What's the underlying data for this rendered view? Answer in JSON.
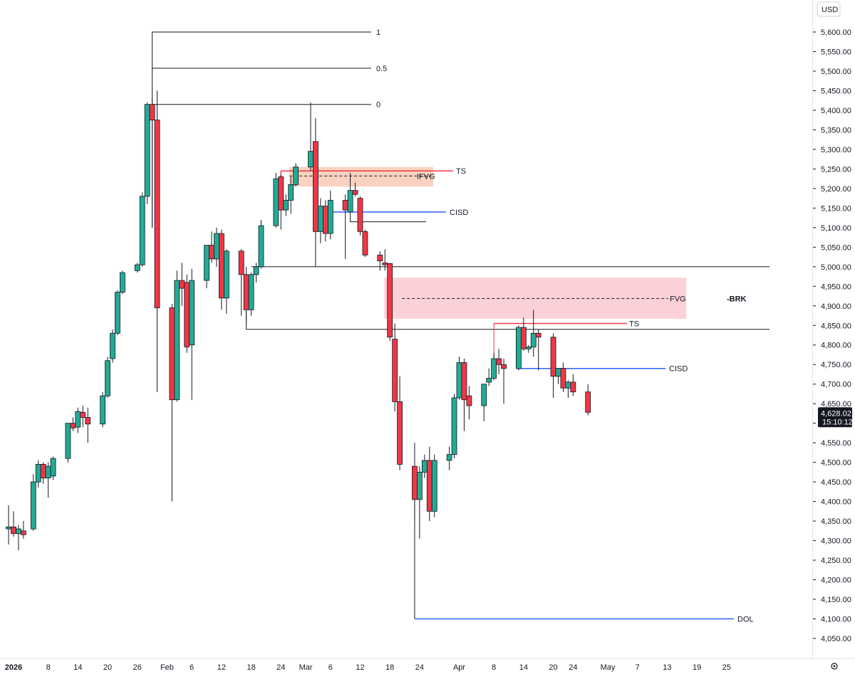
{
  "chart_data": {
    "type": "candlestick",
    "currency_button": "USD",
    "current_price_label": "4,628.02",
    "countdown_label": "15:10:12",
    "y_axis": {
      "range": [
        4020,
        5640
      ],
      "ticks": [
        "4,050.00",
        "4,100.00",
        "4,150.00",
        "4,200.00",
        "4,250.00",
        "4,300.00",
        "4,350.00",
        "4,400.00",
        "4,450.00",
        "4,500.00",
        "4,550.00",
        "4,600.00",
        "4,650.00",
        "4,700.00",
        "4,750.00",
        "4,800.00",
        "4,850.00",
        "4,900.00",
        "4,950.00",
        "5,000.00",
        "5,050.00",
        "5,100.00",
        "5,150.00",
        "5,200.00",
        "5,250.00",
        "5,300.00",
        "5,350.00",
        "5,400.00",
        "5,450.00",
        "5,500.00",
        "5,550.00",
        "5,600.00"
      ]
    },
    "x_axis": {
      "range": [
        "2025-12-31",
        "2026-05-28"
      ],
      "ticks": [
        {
          "date": "2026-01-01",
          "label": "2026",
          "bold": true
        },
        {
          "date": "2026-01-08",
          "label": "8"
        },
        {
          "date": "2026-01-14",
          "label": "14"
        },
        {
          "date": "2026-01-20",
          "label": "20"
        },
        {
          "date": "2026-01-26",
          "label": "26"
        },
        {
          "date": "2026-02-01",
          "label": "Feb"
        },
        {
          "date": "2026-02-06",
          "label": "6"
        },
        {
          "date": "2026-02-12",
          "label": "12"
        },
        {
          "date": "2026-02-18",
          "label": "18"
        },
        {
          "date": "2026-02-24",
          "label": "24"
        },
        {
          "date": "2026-03-01",
          "label": "Mar"
        },
        {
          "date": "2026-03-06",
          "label": "6"
        },
        {
          "date": "2026-03-12",
          "label": "12"
        },
        {
          "date": "2026-03-18",
          "label": "18"
        },
        {
          "date": "2026-03-24",
          "label": "24"
        },
        {
          "date": "2026-04-01",
          "label": "Apr"
        },
        {
          "date": "2026-04-08",
          "label": "8"
        },
        {
          "date": "2026-04-14",
          "label": "14"
        },
        {
          "date": "2026-04-20",
          "label": "20"
        },
        {
          "date": "2026-04-24",
          "label": "24"
        },
        {
          "date": "2026-05-01",
          "label": "May"
        },
        {
          "date": "2026-05-07",
          "label": "7"
        },
        {
          "date": "2026-05-13",
          "label": "13"
        },
        {
          "date": "2026-05-19",
          "label": "19"
        },
        {
          "date": "2026-05-25",
          "label": "25"
        }
      ]
    },
    "candles": [
      {
        "date": "2025-12-31",
        "o": 4330,
        "h": 4390,
        "l": 4290,
        "c": 4335
      },
      {
        "date": "2026-01-01",
        "o": 4335,
        "h": 4375,
        "l": 4310,
        "c": 4318
      },
      {
        "date": "2026-01-02",
        "o": 4318,
        "h": 4340,
        "l": 4275,
        "c": 4330
      },
      {
        "date": "2026-01-03",
        "o": 4325,
        "h": 4350,
        "l": 4305,
        "c": 4315
      },
      {
        "date": "2026-01-05",
        "o": 4330,
        "h": 4470,
        "l": 4325,
        "c": 4450
      },
      {
        "date": "2026-01-06",
        "o": 4450,
        "h": 4505,
        "l": 4435,
        "c": 4495
      },
      {
        "date": "2026-01-07",
        "o": 4495,
        "h": 4500,
        "l": 4445,
        "c": 4460
      },
      {
        "date": "2026-01-08",
        "o": 4460,
        "h": 4500,
        "l": 4410,
        "c": 4490
      },
      {
        "date": "2026-01-09",
        "o": 4465,
        "h": 4515,
        "l": 4455,
        "c": 4510
      },
      {
        "date": "2026-01-12",
        "o": 4510,
        "h": 4600,
        "l": 4500,
        "c": 4600
      },
      {
        "date": "2026-01-13",
        "o": 4600,
        "h": 4615,
        "l": 4580,
        "c": 4588
      },
      {
        "date": "2026-01-14",
        "o": 4590,
        "h": 4640,
        "l": 4575,
        "c": 4630
      },
      {
        "date": "2026-01-15",
        "o": 4628,
        "h": 4645,
        "l": 4590,
        "c": 4615
      },
      {
        "date": "2026-01-16",
        "o": 4615,
        "h": 4640,
        "l": 4550,
        "c": 4598
      },
      {
        "date": "2026-01-19",
        "o": 4598,
        "h": 4680,
        "l": 4590,
        "c": 4670
      },
      {
        "date": "2026-01-20",
        "o": 4670,
        "h": 4770,
        "l": 4665,
        "c": 4760
      },
      {
        "date": "2026-01-21",
        "o": 4765,
        "h": 4840,
        "l": 4755,
        "c": 4830
      },
      {
        "date": "2026-01-22",
        "o": 4830,
        "h": 4940,
        "l": 4825,
        "c": 4935
      },
      {
        "date": "2026-01-23",
        "o": 4935,
        "h": 4990,
        "l": 4930,
        "c": 4985
      },
      {
        "date": "2026-01-26",
        "o": 4990,
        "h": 5010,
        "l": 4985,
        "c": 5005
      },
      {
        "date": "2026-01-27",
        "o": 5005,
        "h": 5190,
        "l": 5000,
        "c": 5180
      },
      {
        "date": "2026-01-28",
        "o": 5180,
        "h": 5420,
        "l": 5160,
        "c": 5415
      },
      {
        "date": "2026-01-29",
        "o": 5415,
        "h": 5430,
        "l": 5100,
        "c": 5375
      },
      {
        "date": "2026-01-30",
        "o": 5375,
        "h": 5450,
        "l": 4680,
        "c": 4895
      },
      {
        "date": "2026-02-02",
        "o": 4895,
        "h": 4905,
        "l": 4400,
        "c": 4660
      },
      {
        "date": "2026-02-03",
        "o": 4660,
        "h": 4990,
        "l": 4655,
        "c": 4965
      },
      {
        "date": "2026-02-04",
        "o": 4965,
        "h": 5010,
        "l": 4900,
        "c": 4945
      },
      {
        "date": "2026-02-05",
        "o": 4960,
        "h": 4980,
        "l": 4780,
        "c": 4795
      },
      {
        "date": "2026-02-06",
        "o": 4800,
        "h": 4995,
        "l": 4660,
        "c": 4965
      },
      {
        "date": "2026-02-09",
        "o": 4965,
        "h": 5055,
        "l": 4945,
        "c": 5055
      },
      {
        "date": "2026-02-10",
        "o": 5055,
        "h": 5090,
        "l": 5010,
        "c": 5020
      },
      {
        "date": "2026-02-11",
        "o": 5020,
        "h": 5100,
        "l": 5000,
        "c": 5085
      },
      {
        "date": "2026-02-12",
        "o": 5085,
        "h": 5095,
        "l": 4890,
        "c": 4920
      },
      {
        "date": "2026-02-13",
        "o": 4920,
        "h": 5045,
        "l": 4880,
        "c": 5040
      },
      {
        "date": "2026-02-16",
        "o": 5040,
        "h": 5045,
        "l": 4875,
        "c": 4980
      },
      {
        "date": "2026-02-17",
        "o": 4980,
        "h": 5000,
        "l": 4855,
        "c": 4890
      },
      {
        "date": "2026-02-18",
        "o": 4890,
        "h": 4985,
        "l": 4875,
        "c": 4980
      },
      {
        "date": "2026-02-19",
        "o": 4980,
        "h": 5010,
        "l": 4960,
        "c": 5000
      },
      {
        "date": "2026-02-20",
        "o": 5000,
        "h": 5120,
        "l": 4995,
        "c": 5105
      },
      {
        "date": "2026-02-23",
        "o": 5105,
        "h": 5240,
        "l": 5100,
        "c": 5225
      },
      {
        "date": "2026-02-24",
        "o": 5230,
        "h": 5235,
        "l": 5095,
        "c": 5145
      },
      {
        "date": "2026-02-25",
        "o": 5145,
        "h": 5185,
        "l": 5130,
        "c": 5170
      },
      {
        "date": "2026-02-26",
        "o": 5170,
        "h": 5230,
        "l": 5135,
        "c": 5210
      },
      {
        "date": "2026-02-27",
        "o": 5210,
        "h": 5265,
        "l": 5205,
        "c": 5255
      },
      {
        "date": "2026-03-02",
        "o": 5255,
        "h": 5420,
        "l": 5245,
        "c": 5295
      },
      {
        "date": "2026-03-03",
        "o": 5320,
        "h": 5380,
        "l": 5000,
        "c": 5090
      },
      {
        "date": "2026-03-04",
        "o": 5090,
        "h": 5175,
        "l": 5060,
        "c": 5155
      },
      {
        "date": "2026-03-05",
        "o": 5155,
        "h": 5170,
        "l": 5065,
        "c": 5085
      },
      {
        "date": "2026-03-06",
        "o": 5085,
        "h": 5195,
        "l": 5070,
        "c": 5170
      },
      {
        "date": "2026-03-09",
        "o": 5170,
        "h": 5185,
        "l": 5020,
        "c": 5145
      },
      {
        "date": "2026-03-10",
        "o": 5140,
        "h": 5240,
        "l": 5135,
        "c": 5195
      },
      {
        "date": "2026-03-11",
        "o": 5195,
        "h": 5215,
        "l": 5180,
        "c": 5185
      },
      {
        "date": "2026-03-12",
        "o": 5175,
        "h": 5180,
        "l": 5080,
        "c": 5090
      },
      {
        "date": "2026-03-13",
        "o": 5090,
        "h": 5095,
        "l": 5025,
        "c": 5030
      },
      {
        "date": "2026-03-16",
        "o": 5030,
        "h": 5040,
        "l": 4990,
        "c": 5015
      },
      {
        "date": "2026-03-17",
        "o": 5010,
        "h": 5045,
        "l": 4990,
        "c": 5005
      },
      {
        "date": "2026-03-18",
        "o": 5008,
        "h": 5010,
        "l": 4810,
        "c": 4820
      },
      {
        "date": "2026-03-19",
        "o": 4815,
        "h": 4855,
        "l": 4630,
        "c": 4655
      },
      {
        "date": "2026-03-20",
        "o": 4655,
        "h": 4720,
        "l": 4480,
        "c": 4495
      },
      {
        "date": "2026-03-23",
        "o": 4490,
        "h": 4550,
        "l": 4350,
        "c": 4405
      },
      {
        "date": "2026-03-24",
        "o": 4405,
        "h": 4490,
        "l": 4305,
        "c": 4475
      },
      {
        "date": "2026-03-25",
        "o": 4475,
        "h": 4520,
        "l": 4460,
        "c": 4505
      },
      {
        "date": "2026-03-26",
        "o": 4505,
        "h": 4540,
        "l": 4350,
        "c": 4375
      },
      {
        "date": "2026-03-27",
        "o": 4375,
        "h": 4520,
        "l": 4360,
        "c": 4505
      },
      {
        "date": "2026-03-30",
        "o": 4505,
        "h": 4540,
        "l": 4480,
        "c": 4520
      },
      {
        "date": "2026-03-31",
        "o": 4520,
        "h": 4675,
        "l": 4510,
        "c": 4665
      },
      {
        "date": "2026-04-01",
        "o": 4665,
        "h": 4770,
        "l": 4660,
        "c": 4755
      },
      {
        "date": "2026-04-02",
        "o": 4755,
        "h": 4765,
        "l": 4580,
        "c": 4660
      },
      {
        "date": "2026-04-03",
        "o": 4670,
        "h": 4695,
        "l": 4610,
        "c": 4645
      },
      {
        "date": "2026-04-06",
        "o": 4645,
        "h": 4700,
        "l": 4605,
        "c": 4700
      },
      {
        "date": "2026-04-07",
        "o": 4705,
        "h": 4740,
        "l": 4695,
        "c": 4715
      },
      {
        "date": "2026-04-08",
        "o": 4715,
        "h": 4780,
        "l": 4710,
        "c": 4765
      },
      {
        "date": "2026-04-09",
        "o": 4765,
        "h": 4790,
        "l": 4725,
        "c": 4750
      },
      {
        "date": "2026-04-10",
        "o": 4750,
        "h": 4765,
        "l": 4650,
        "c": 4740
      },
      {
        "date": "2026-04-13",
        "o": 4740,
        "h": 4850,
        "l": 4735,
        "c": 4845
      },
      {
        "date": "2026-04-14",
        "o": 4845,
        "h": 4870,
        "l": 4785,
        "c": 4790
      },
      {
        "date": "2026-04-15",
        "o": 4790,
        "h": 4800,
        "l": 4780,
        "c": 4795
      },
      {
        "date": "2026-04-16",
        "o": 4795,
        "h": 4890,
        "l": 4770,
        "c": 4830
      },
      {
        "date": "2026-04-17",
        "o": 4830,
        "h": 4840,
        "l": 4735,
        "c": 4820
      },
      {
        "date": "2026-04-20",
        "o": 4820,
        "h": 4830,
        "l": 4665,
        "c": 4720
      },
      {
        "date": "2026-04-21",
        "o": 4720,
        "h": 4740,
        "l": 4700,
        "c": 4740
      },
      {
        "date": "2026-04-22",
        "o": 4740,
        "h": 4755,
        "l": 4680,
        "c": 4690
      },
      {
        "date": "2026-04-23",
        "o": 4690,
        "h": 4710,
        "l": 4665,
        "c": 4705
      },
      {
        "date": "2026-04-24",
        "o": 4705,
        "h": 4725,
        "l": 4670,
        "c": 4680
      },
      {
        "date": "2026-04-27",
        "o": 4680,
        "h": 4700,
        "l": 4620,
        "c": 4628
      }
    ],
    "colors": {
      "bull": "#22ab94",
      "bear": "#f23645",
      "outline": "#131722",
      "blue_line": "#2962ff",
      "red_line": "#f23645",
      "ifvg_box": "rgba(247,155,118,0.45)",
      "fvg_box": "rgba(249,171,180,0.55)",
      "price_badge": "#131722"
    },
    "annotations": {
      "fib_labels": [
        "1",
        "0.5",
        "0"
      ],
      "ifvg_label": "IFVG",
      "ts_label_1": "TS",
      "cisd_label_1": "CISD",
      "fvg_label": "FVG",
      "brk_label": "-BRK",
      "ts_label_2": "TS",
      "cisd_label_2": "CISD",
      "dol_label": "DOL"
    }
  }
}
